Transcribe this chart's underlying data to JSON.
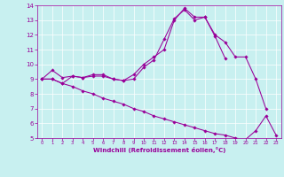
{
  "x": [
    0,
    1,
    2,
    3,
    4,
    5,
    6,
    7,
    8,
    9,
    10,
    11,
    12,
    13,
    14,
    15,
    16,
    17,
    18,
    19,
    20,
    21,
    22,
    23
  ],
  "line1": [
    9.0,
    9.6,
    9.1,
    9.2,
    9.1,
    9.3,
    9.3,
    9.0,
    8.9,
    9.3,
    10.0,
    10.5,
    11.0,
    13.0,
    13.8,
    13.2,
    13.2,
    12.0,
    11.5,
    10.5,
    10.5,
    9.0,
    7.0,
    null
  ],
  "line2": [
    9.0,
    9.0,
    8.7,
    9.2,
    9.1,
    9.2,
    9.2,
    9.0,
    8.9,
    9.0,
    9.8,
    10.3,
    11.7,
    13.1,
    13.7,
    13.0,
    13.2,
    11.9,
    10.4,
    null,
    null,
    null,
    null,
    null
  ],
  "line3": [
    9.0,
    9.0,
    8.7,
    8.5,
    8.2,
    8.0,
    7.7,
    7.5,
    7.3,
    7.0,
    6.8,
    6.5,
    6.3,
    6.1,
    5.9,
    5.7,
    5.5,
    5.3,
    5.2,
    5.0,
    4.9,
    5.5,
    6.5,
    5.2
  ],
  "color": "#990099",
  "bg_color": "#c8f0f0",
  "grid_color": "#ffffff",
  "xlabel": "Windchill (Refroidissement éolien,°C)",
  "ylim": [
    5,
    14
  ],
  "xlim": [
    -0.5,
    23.5
  ],
  "yticks": [
    5,
    6,
    7,
    8,
    9,
    10,
    11,
    12,
    13,
    14
  ],
  "xticks": [
    0,
    1,
    2,
    3,
    4,
    5,
    6,
    7,
    8,
    9,
    10,
    11,
    12,
    13,
    14,
    15,
    16,
    17,
    18,
    19,
    20,
    21,
    22,
    23
  ]
}
